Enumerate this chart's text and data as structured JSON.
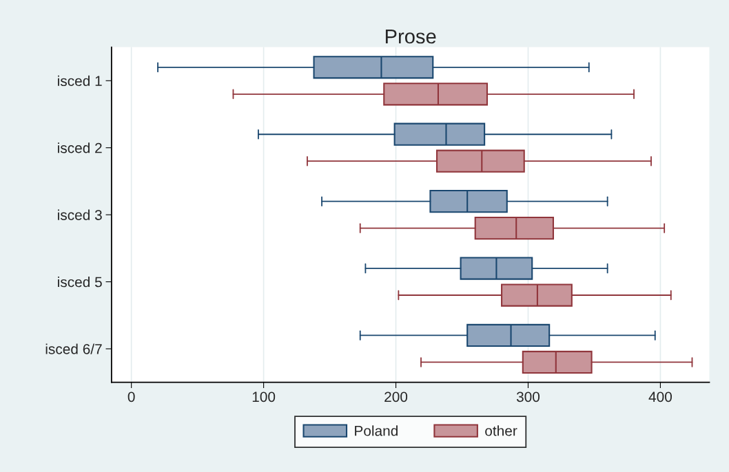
{
  "chart_data": {
    "type": "box",
    "title": "Prose",
    "orientation": "horizontal",
    "categories": [
      "isced 1",
      "isced 2",
      "isced 3",
      "isced 5",
      "isced 6/7"
    ],
    "series": [
      {
        "name": "Poland",
        "color": "#8fa4bd",
        "boxes": [
          {
            "low": 20,
            "q1": 138,
            "median": 189,
            "q3": 228,
            "high": 346
          },
          {
            "low": 96,
            "q1": 199,
            "median": 238,
            "q3": 267,
            "high": 363
          },
          {
            "low": 144,
            "q1": 226,
            "median": 254,
            "q3": 284,
            "high": 360
          },
          {
            "low": 177,
            "q1": 249,
            "median": 276,
            "q3": 303,
            "high": 360
          },
          {
            "low": 173,
            "q1": 254,
            "median": 287,
            "q3": 316,
            "high": 396
          }
        ]
      },
      {
        "name": "other",
        "color": "#c8959a",
        "boxes": [
          {
            "low": 77,
            "q1": 191,
            "median": 232,
            "q3": 269,
            "high": 380
          },
          {
            "low": 133,
            "q1": 231,
            "median": 265,
            "q3": 297,
            "high": 393
          },
          {
            "low": 173,
            "q1": 260,
            "median": 291,
            "q3": 319,
            "high": 403
          },
          {
            "low": 202,
            "q1": 280,
            "median": 307,
            "q3": 333,
            "high": 408
          },
          {
            "low": 219,
            "q1": 296,
            "median": 321,
            "q3": 348,
            "high": 424
          }
        ]
      }
    ],
    "xlim": [
      -15,
      437
    ],
    "xticks": [
      0,
      100,
      200,
      300,
      400
    ],
    "grid": "x",
    "legend": "bottom"
  }
}
